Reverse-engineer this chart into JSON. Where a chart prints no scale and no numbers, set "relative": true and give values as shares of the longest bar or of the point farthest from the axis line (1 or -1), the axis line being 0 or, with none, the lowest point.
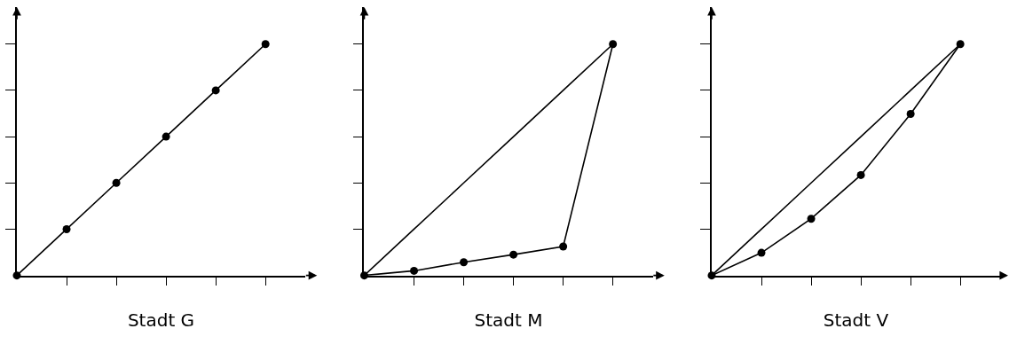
{
  "chart_data": [
    {
      "type": "line",
      "xlabel": "Stadt G",
      "relative": true,
      "marker": "circle",
      "categories": [
        null,
        null,
        null,
        null,
        null,
        null
      ],
      "series": [
        {
          "color": "#000000",
          "values": [
            0,
            0.2,
            0.4,
            0.6,
            0.8,
            1
          ]
        }
      ]
    },
    {
      "type": "line",
      "xlabel": "Stadt M",
      "relative": true,
      "marker": "circle",
      "categories": [
        null,
        null,
        null,
        null,
        null,
        null
      ],
      "series": [
        {
          "color": "#000000",
          "marker": "none",
          "values": [
            0,
            0.2,
            0.4,
            0.6,
            0.8,
            1
          ]
        },
        {
          "color": "#000000",
          "values": [
            0,
            0.02,
            0.057,
            0.09,
            0.125,
            1
          ]
        }
      ]
    },
    {
      "type": "line",
      "xlabel": "Stadt V",
      "relative": true,
      "marker": "circle",
      "categories": [
        null,
        null,
        null,
        null,
        null,
        null
      ],
      "series": [
        {
          "color": "#000000",
          "marker": "none",
          "values": [
            0,
            0.2,
            0.4,
            0.6,
            0.8,
            1
          ]
        },
        {
          "color": "#000000",
          "values": [
            0,
            0.098,
            0.245,
            0.434,
            0.698,
            1
          ]
        }
      ]
    }
  ]
}
